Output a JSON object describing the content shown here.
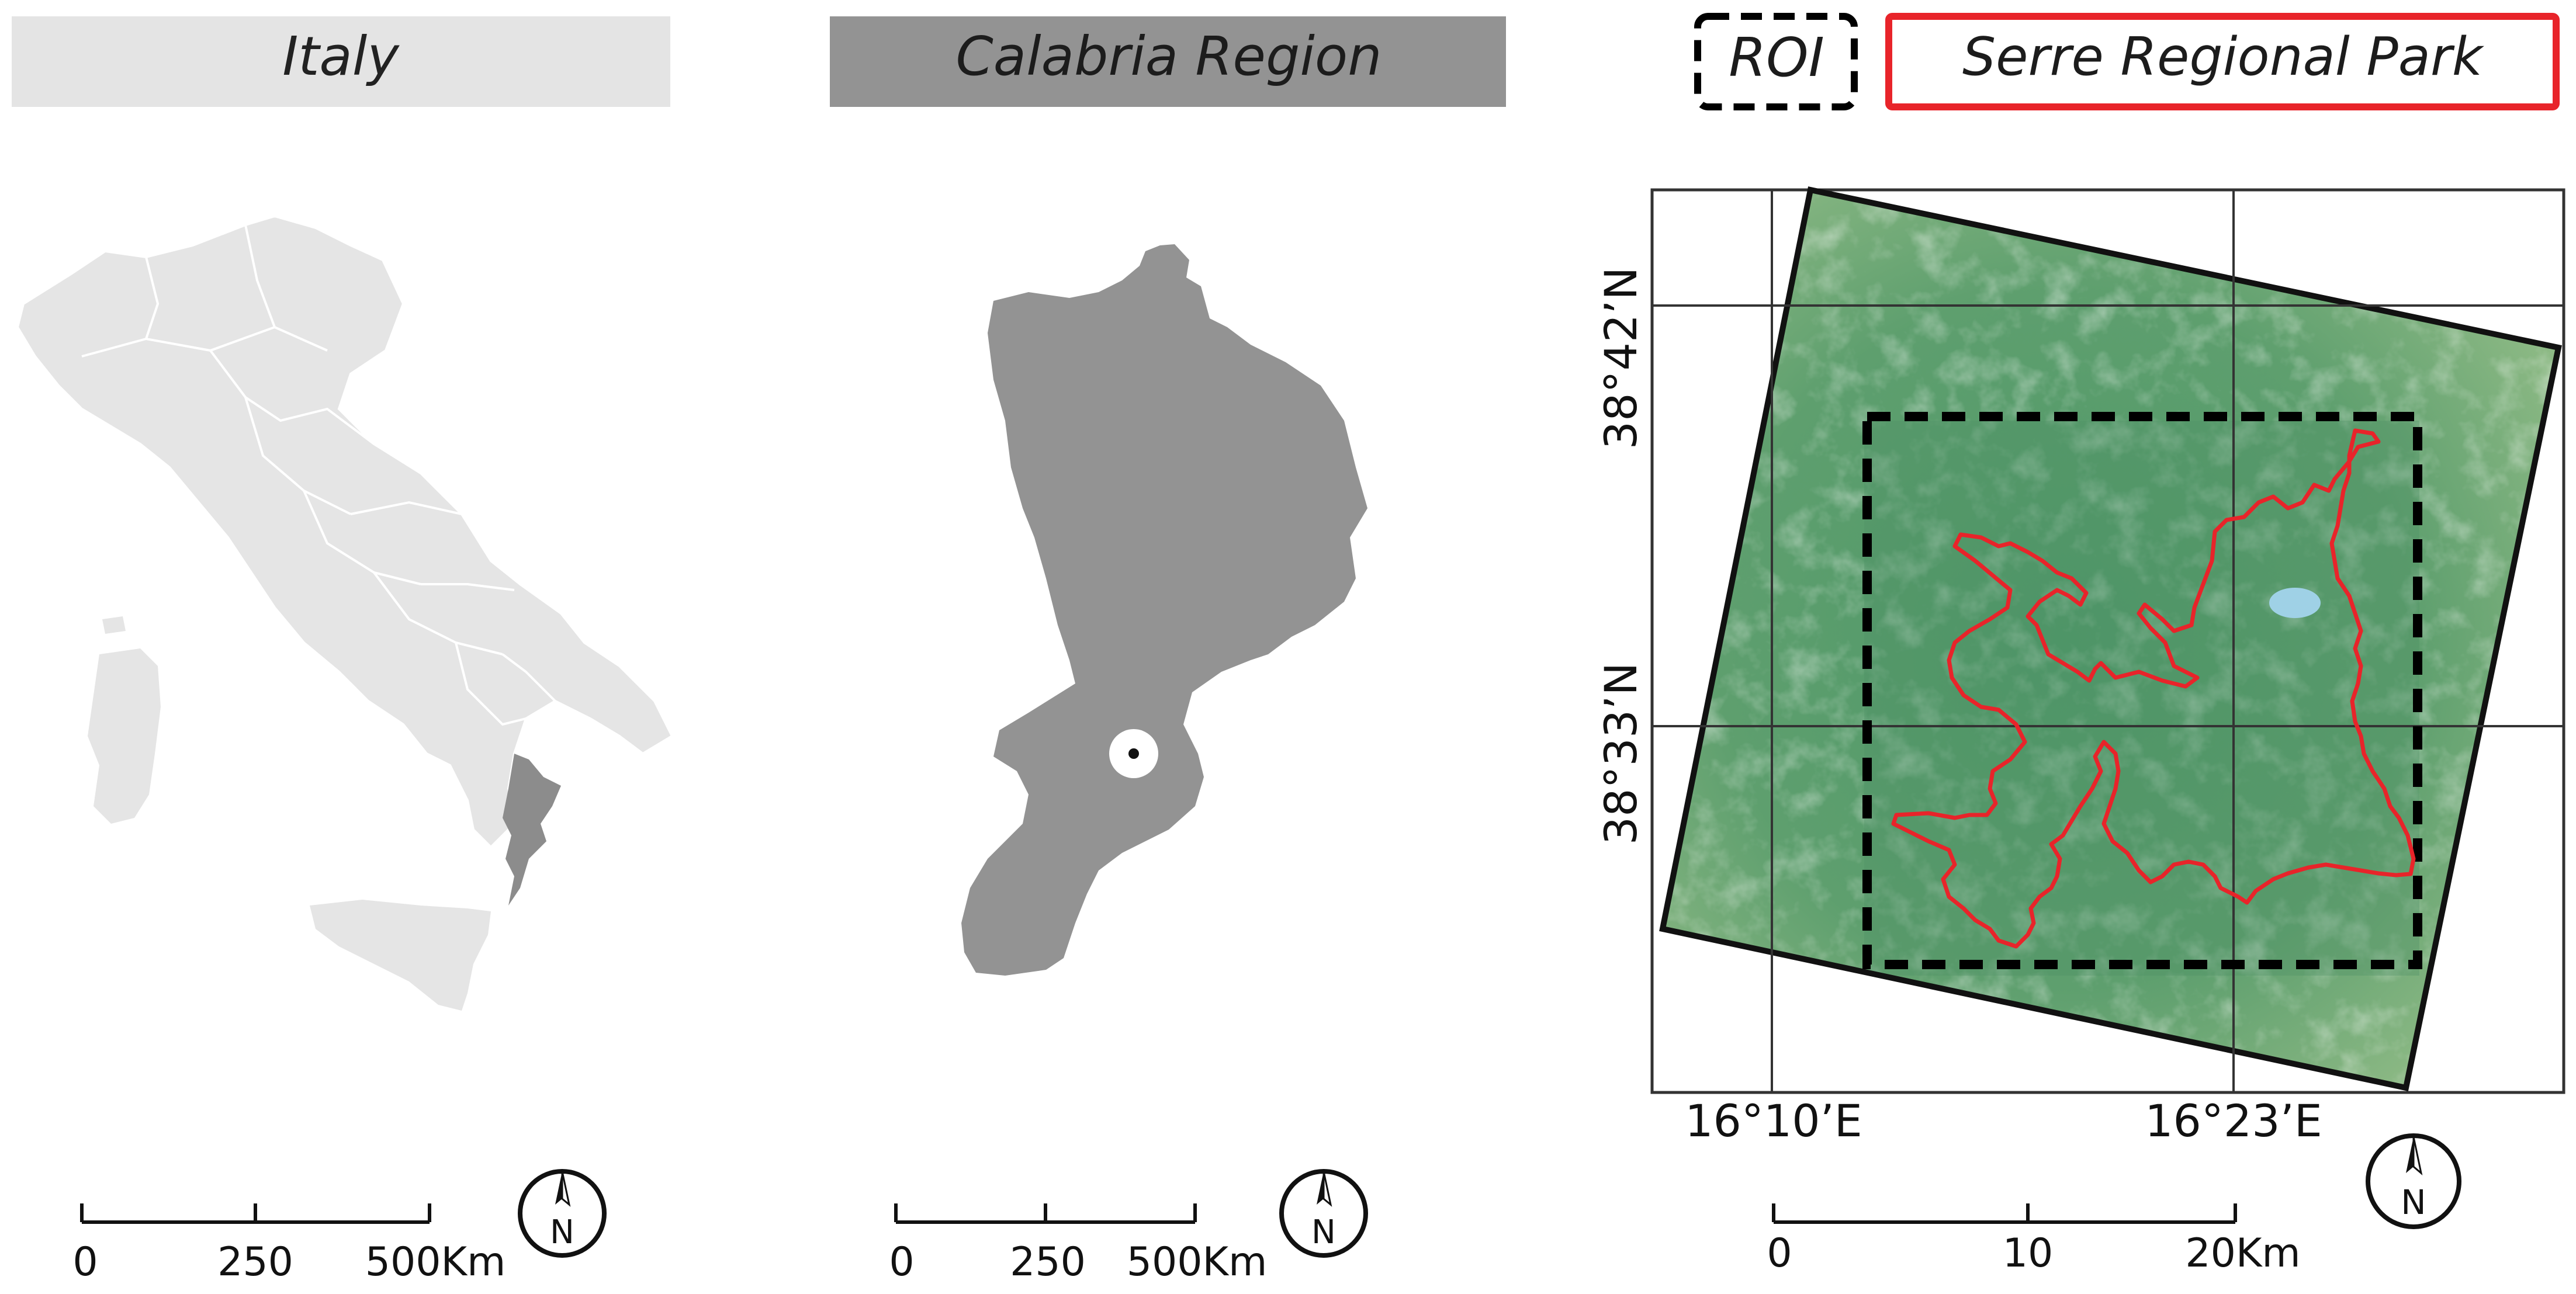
{
  "panels": {
    "italy": {
      "title": "Italy",
      "scale_bar": {
        "ticks": [
          "0",
          "250",
          "500Km"
        ]
      },
      "north_label": "N",
      "fill_color": "#e5e5e5",
      "highlight_color": "#8c8c8c"
    },
    "calabria": {
      "title": "Calabria Region",
      "scale_bar": {
        "ticks": [
          "0",
          "250",
          "500Km"
        ]
      },
      "north_label": "N",
      "fill_color": "#939393"
    },
    "study_area": {
      "legend": {
        "roi_label": "ROI",
        "park_label": "Serre Regional Park",
        "roi_color": "#000000",
        "park_color": "#e8242a"
      },
      "lat_labels": [
        "38°42’N",
        "38°33’N"
      ],
      "lon_labels": [
        "16°10’E",
        "16°23’E"
      ],
      "scale_bar": {
        "ticks": [
          "0",
          "10",
          "20Km"
        ]
      },
      "north_label": "N"
    }
  }
}
